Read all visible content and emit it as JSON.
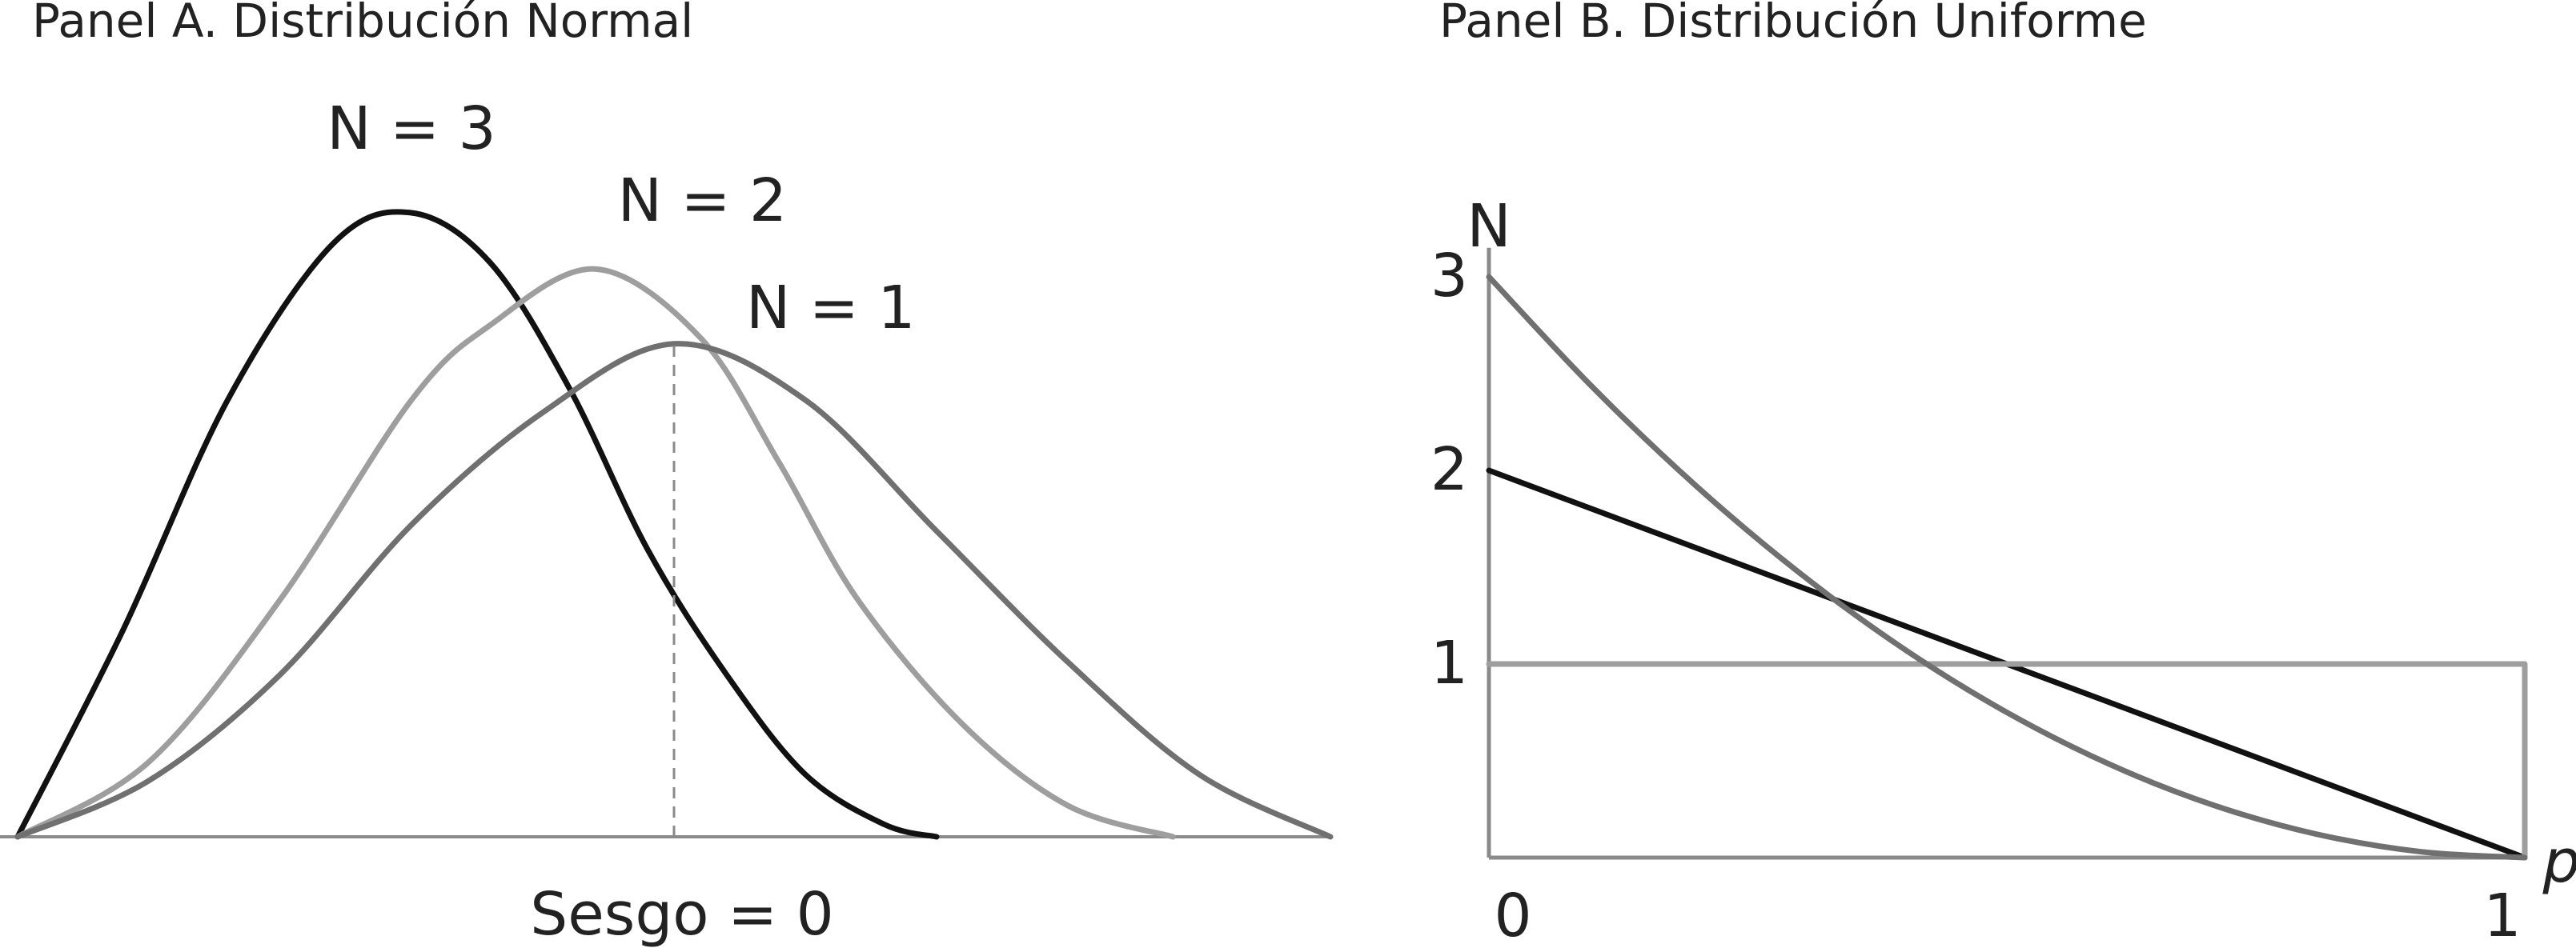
{
  "chart_data": [
    {
      "type": "line",
      "title": "Panel A. Distribución Normal",
      "series": [
        {
          "name": "N = 3",
          "color": "#111111",
          "x": [
            0,
            0.08,
            0.16,
            0.24,
            0.3,
            0.36,
            0.42,
            0.48,
            0.54,
            0.6,
            0.66,
            0.7
          ],
          "y": [
            0.0,
            0.33,
            0.7,
            0.95,
            1.0,
            0.92,
            0.72,
            0.46,
            0.26,
            0.1,
            0.02,
            0.0
          ]
        },
        {
          "name": "N = 2",
          "color": "#9e9e9e",
          "x": [
            0,
            0.1,
            0.2,
            0.3,
            0.36,
            0.44,
            0.52,
            0.58,
            0.64,
            0.72,
            0.8,
            0.88
          ],
          "y": [
            0.0,
            0.12,
            0.38,
            0.7,
            0.82,
            0.91,
            0.8,
            0.6,
            0.38,
            0.18,
            0.05,
            0.0
          ]
        },
        {
          "name": "N = 1",
          "color": "#707070",
          "x": [
            0,
            0.1,
            0.2,
            0.3,
            0.4,
            0.5,
            0.6,
            0.7,
            0.8,
            0.9,
            1.0
          ],
          "y": [
            0.0,
            0.09,
            0.26,
            0.5,
            0.68,
            0.79,
            0.7,
            0.49,
            0.28,
            0.1,
            0.0
          ]
        }
      ],
      "annotations": [
        {
          "text": "Sesgo = 0",
          "x": 0.5
        }
      ],
      "grid": false,
      "legend": "labels on curves"
    },
    {
      "type": "line",
      "title": "Panel B. Distribución Uniforme",
      "xlabel": "p",
      "ylabel": "N",
      "xticks": [
        "0",
        "1"
      ],
      "yticks": [
        "1",
        "2",
        "3"
      ],
      "xlim": [
        0,
        1
      ],
      "ylim": [
        0,
        3.1
      ],
      "series": [
        {
          "color": "#111111",
          "x": [
            0,
            1
          ],
          "y": [
            2,
            0
          ]
        },
        {
          "color": "#9e9e9e",
          "x": [
            0,
            1,
            1
          ],
          "y": [
            1,
            1,
            0
          ]
        },
        {
          "color": "#707070",
          "x": [
            0,
            0.1,
            0.2,
            0.3,
            0.4,
            0.5,
            0.6,
            0.7,
            0.8,
            0.9,
            1.0
          ],
          "y": [
            3.0,
            2.43,
            1.92,
            1.47,
            1.08,
            0.75,
            0.48,
            0.27,
            0.12,
            0.03,
            0.0
          ]
        }
      ],
      "grid": false
    }
  ]
}
